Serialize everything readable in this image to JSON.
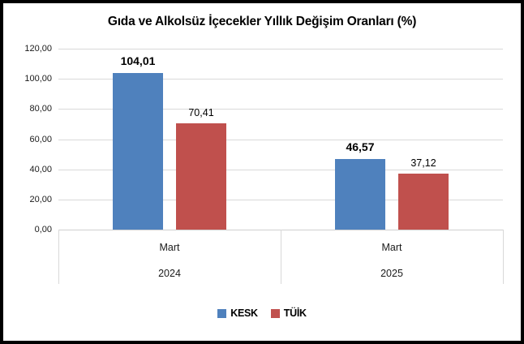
{
  "chart_data": {
    "type": "bar",
    "title": "Gıda ve Alkolsüz İçecekler Yıllık Değişim Oranları (%)",
    "ylim": [
      0,
      120
    ],
    "grid": true,
    "legend_position": "bottom",
    "yticks": [
      {
        "v": 0,
        "label": "0,00"
      },
      {
        "v": 20,
        "label": "20,00"
      },
      {
        "v": 40,
        "label": "40,00"
      },
      {
        "v": 60,
        "label": "60,00"
      },
      {
        "v": 80,
        "label": "80,00"
      },
      {
        "v": 100,
        "label": "100,00"
      },
      {
        "v": 120,
        "label": "120,00"
      }
    ],
    "series": [
      {
        "name": "KESK",
        "color": "#4F81BD"
      },
      {
        "name": "TÜİK",
        "color": "#C0504D"
      }
    ],
    "groups": [
      {
        "category_line1": "Mart",
        "category_line2": "2024",
        "bars": [
          {
            "series": "KESK",
            "value": 104.01,
            "label": "104,01"
          },
          {
            "series": "TÜİK",
            "value": 70.41,
            "label": "70,41"
          }
        ]
      },
      {
        "category_line1": "Mart",
        "category_line2": "2025",
        "bars": [
          {
            "series": "KESK",
            "value": 46.57,
            "label": "46,57"
          },
          {
            "series": "TÜİK",
            "value": 37.12,
            "label": "37,12"
          }
        ]
      }
    ]
  }
}
